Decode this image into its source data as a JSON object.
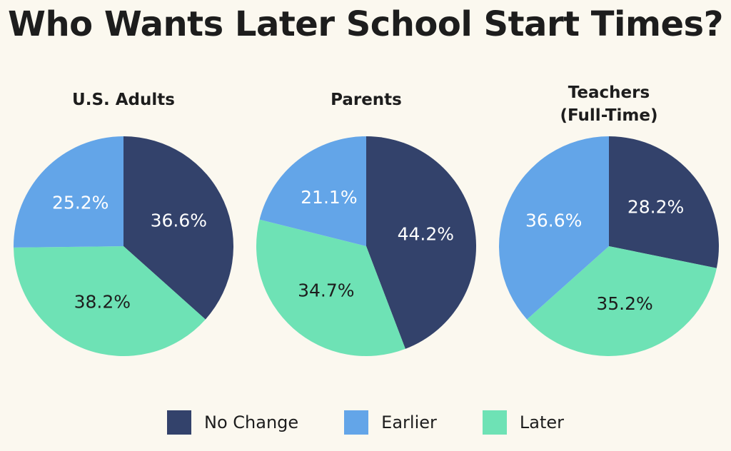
{
  "title": "Who Wants Later School Start Times?",
  "colors": {
    "No Change": "#33426b",
    "Earlier": "#63a5e8",
    "Later": "#6ee2b5",
    "dark_text": "#1d1d1d",
    "light_text": "#ffffff"
  },
  "chart_data": [
    {
      "type": "pie",
      "title": "U.S. Adults",
      "series": [
        {
          "name": "No Change",
          "value": 36.6,
          "label": "36.6%"
        },
        {
          "name": "Later",
          "value": 38.2,
          "label": "38.2%"
        },
        {
          "name": "Earlier",
          "value": 25.2,
          "label": "25.2%"
        }
      ]
    },
    {
      "type": "pie",
      "title": "Parents",
      "series": [
        {
          "name": "No Change",
          "value": 44.2,
          "label": "44.2%"
        },
        {
          "name": "Later",
          "value": 34.7,
          "label": "34.7%"
        },
        {
          "name": "Earlier",
          "value": 21.1,
          "label": "21.1%"
        }
      ]
    },
    {
      "type": "pie",
      "title": "Teachers\n(Full-Time)",
      "title_lines": [
        "Teachers",
        "(Full-Time)"
      ],
      "series": [
        {
          "name": "No Change",
          "value": 28.2,
          "label": "28.2%"
        },
        {
          "name": "Later",
          "value": 35.2,
          "label": "35.2%"
        },
        {
          "name": "Earlier",
          "value": 36.6,
          "label": "36.6%"
        }
      ]
    }
  ],
  "legend": {
    "placement": "bottom",
    "items": [
      {
        "label": "No Change"
      },
      {
        "label": "Earlier"
      },
      {
        "label": "Later"
      }
    ]
  }
}
